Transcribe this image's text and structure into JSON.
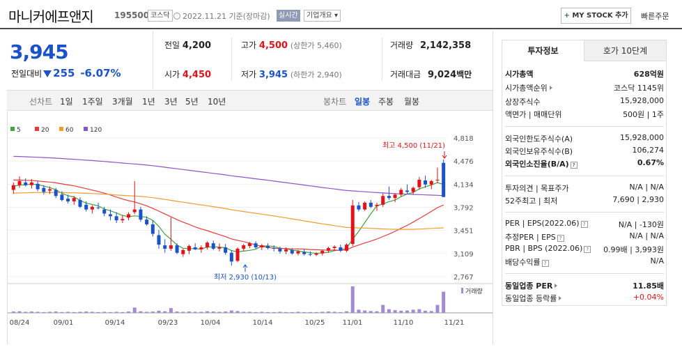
{
  "header": {
    "title": "마니커에프앤지",
    "code": "195500",
    "market": "코스닥",
    "date": "2022.11.21 기준(장마감)",
    "live_label": "실시간",
    "overview_label": "기업개요",
    "mystock_label": "MY STOCK 추가",
    "quick_order_label": "빠른주문"
  },
  "price": {
    "current": "3,945",
    "change_label": "전일대비",
    "change_value": "255",
    "change_pct": "-6.07%"
  },
  "quote": {
    "prev_label": "전일",
    "prev_value": "4,200",
    "high_label": "고가",
    "high_value": "4,500",
    "upper_limit": "(상한가 5,460)",
    "volume_label": "거래량",
    "volume_value": "2,142,358",
    "open_label": "시가",
    "open_value": "4,450",
    "low_label": "저가",
    "low_value": "3,945",
    "lower_limit": "(하한가 2,940)",
    "amount_label": "거래대금",
    "amount_value": "9,024",
    "amount_unit": "백만"
  },
  "period_tabs": {
    "caption": "선차트",
    "items": [
      "1일",
      "1주일",
      "3개월",
      "1년",
      "3년",
      "5년",
      "10년"
    ],
    "candle_caption": "봉차트",
    "candle_items": [
      "일봉",
      "주봉",
      "월봉"
    ],
    "selected_candle": "일봉"
  },
  "chart_data": {
    "type": "candlestick",
    "legend": [
      {
        "name": "5",
        "color": "#3fa33f"
      },
      {
        "name": "20",
        "color": "#e33b3b"
      },
      {
        "name": "60",
        "color": "#f29b2e"
      },
      {
        "name": "120",
        "color": "#8a55c2"
      }
    ],
    "y_ticks": [
      "4,818",
      "4,476",
      "4,134",
      "3,792",
      "3,451",
      "3,109",
      "2,767"
    ],
    "ylim": [
      2767,
      4818
    ],
    "x_ticks": [
      "08/24",
      "09/01",
      "09/14",
      "09/23",
      "10/04",
      "10/14",
      "10/25",
      "11/01",
      "11/10",
      "11/21"
    ],
    "high_annotation": "최고 4,500 (11/21)",
    "low_annotation": "최저 2,930 (10/13)",
    "volume_label": "거래량",
    "ohlc": [
      [
        4050,
        4160,
        3990,
        4120
      ],
      [
        4120,
        4250,
        4080,
        4180
      ],
      [
        4160,
        4220,
        4100,
        4120
      ],
      [
        4120,
        4210,
        4070,
        4160
      ],
      [
        4140,
        4180,
        4030,
        4060
      ],
      [
        4080,
        4120,
        3980,
        4020
      ],
      [
        4040,
        4100,
        3990,
        4060
      ],
      [
        4050,
        4080,
        3930,
        3960
      ],
      [
        3980,
        4030,
        3880,
        3900
      ],
      [
        3920,
        3980,
        3850,
        3880
      ],
      [
        3880,
        3960,
        3830,
        3930
      ],
      [
        3900,
        3940,
        3780,
        3800
      ],
      [
        3830,
        3880,
        3730,
        3760
      ],
      [
        3760,
        3820,
        3700,
        3800
      ],
      [
        3790,
        3860,
        3760,
        3780
      ],
      [
        3760,
        3800,
        3660,
        3700
      ],
      [
        3690,
        3760,
        3600,
        3660
      ],
      [
        3660,
        3720,
        3560,
        3600
      ],
      [
        3600,
        3680,
        3560,
        3620
      ],
      [
        3640,
        3720,
        3600,
        3690
      ],
      [
        3720,
        4180,
        3690,
        3760
      ],
      [
        3760,
        3800,
        3580,
        3610
      ],
      [
        3610,
        3660,
        3520,
        3540
      ],
      [
        3540,
        3600,
        3360,
        3400
      ],
      [
        3380,
        3460,
        3180,
        3240
      ],
      [
        3230,
        3320,
        3120,
        3180
      ],
      [
        3180,
        3640,
        3150,
        3230
      ],
      [
        3230,
        3260,
        3100,
        3120
      ],
      [
        3100,
        3180,
        3060,
        3160
      ],
      [
        3150,
        3240,
        3100,
        3220
      ],
      [
        3200,
        3260,
        3160,
        3170
      ],
      [
        3170,
        3230,
        3120,
        3200
      ],
      [
        3200,
        3290,
        3170,
        3270
      ],
      [
        3260,
        3300,
        3160,
        3180
      ],
      [
        3180,
        3260,
        3140,
        3200
      ],
      [
        3200,
        3250,
        3090,
        3120
      ],
      [
        3120,
        3160,
        2930,
        2990
      ],
      [
        3000,
        3200,
        2980,
        3180
      ],
      [
        3180,
        3250,
        3140,
        3230
      ],
      [
        3220,
        3280,
        3190,
        3260
      ],
      [
        3260,
        3290,
        3180,
        3200
      ],
      [
        3200,
        3250,
        3160,
        3230
      ],
      [
        3220,
        3260,
        3170,
        3190
      ],
      [
        3190,
        3230,
        3140,
        3180
      ],
      [
        3180,
        3210,
        3110,
        3140
      ],
      [
        3140,
        3200,
        3100,
        3170
      ],
      [
        3160,
        3190,
        3090,
        3110
      ],
      [
        3110,
        3160,
        3080,
        3140
      ],
      [
        3130,
        3170,
        3080,
        3100
      ],
      [
        3100,
        3140,
        3070,
        3090
      ],
      [
        3090,
        3130,
        3070,
        3110
      ],
      [
        3110,
        3160,
        3080,
        3150
      ],
      [
        3150,
        3210,
        3120,
        3190
      ],
      [
        3190,
        3230,
        3150,
        3210
      ],
      [
        3200,
        3240,
        3130,
        3150
      ],
      [
        3150,
        3260,
        3130,
        3240
      ],
      [
        3250,
        3900,
        3220,
        3820
      ],
      [
        3820,
        3870,
        3730,
        3760
      ],
      [
        3760,
        3880,
        3740,
        3860
      ],
      [
        3860,
        3900,
        3780,
        3800
      ],
      [
        3810,
        3860,
        3740,
        3830
      ],
      [
        3830,
        4000,
        3800,
        3960
      ],
      [
        3960,
        4100,
        3900,
        3930
      ],
      [
        3930,
        4000,
        3870,
        3980
      ],
      [
        3980,
        4080,
        3950,
        4050
      ],
      [
        4040,
        4130,
        3990,
        4020
      ],
      [
        4020,
        4100,
        3980,
        4080
      ],
      [
        4090,
        4240,
        4050,
        4200
      ],
      [
        4190,
        4260,
        4080,
        4130
      ],
      [
        4130,
        4200,
        4060,
        4180
      ],
      [
        4200,
        4380,
        4150,
        4200
      ],
      [
        4450,
        4500,
        3945,
        3945
      ]
    ],
    "volume": [
      5,
      6,
      4,
      5,
      4,
      3,
      4,
      5,
      3,
      4,
      3,
      4,
      5,
      4,
      3,
      4,
      3,
      4,
      3,
      5,
      20,
      6,
      4,
      5,
      8,
      6,
      18,
      5,
      4,
      5,
      4,
      4,
      6,
      5,
      4,
      5,
      9,
      7,
      4,
      4,
      3,
      4,
      3,
      3,
      4,
      3,
      3,
      4,
      3,
      3,
      3,
      4,
      5,
      4,
      3,
      6,
      100,
      12,
      9,
      7,
      6,
      30,
      14,
      10,
      8,
      9,
      12,
      14,
      8,
      7,
      30,
      80
    ]
  },
  "side": {
    "tab_invest": "투자정보",
    "tab_hoga": "호가 10단계",
    "rows": [
      {
        "k": "시가총액",
        "v": "628억원"
      },
      {
        "k": "시가총액순위",
        "v": "코스닥 1145위"
      },
      {
        "k": "상장주식수",
        "v": "15,928,000"
      },
      {
        "k": "액면가 | 매매단위",
        "v": "500원 | 1주"
      },
      {
        "k": "외국인한도주식수(A)",
        "v": "15,928,000"
      },
      {
        "k": "외국인보유주식수(B)",
        "v": "106,274"
      },
      {
        "k": "외국인소진율(B/A)",
        "v": "0.67%"
      },
      {
        "k": "투자의견 | 목표주가",
        "v": "N/A | N/A"
      },
      {
        "k": "52주최고 | 최저",
        "v": "7,690 | 2,930"
      },
      {
        "k": "PER | EPS(2022.06)",
        "v": "N/A | -130원"
      },
      {
        "k": "추정PER | EPS",
        "v": "N/A | N/A"
      },
      {
        "k": "PBR | BPS (2022.06)",
        "v": "0.99배 | 3,993원"
      },
      {
        "k": "배당수익률",
        "v": "N/A"
      },
      {
        "k": "동일업종 PER",
        "v": "11.85배"
      },
      {
        "k": "동일업종 등락률",
        "v": "+0.04%"
      }
    ]
  }
}
